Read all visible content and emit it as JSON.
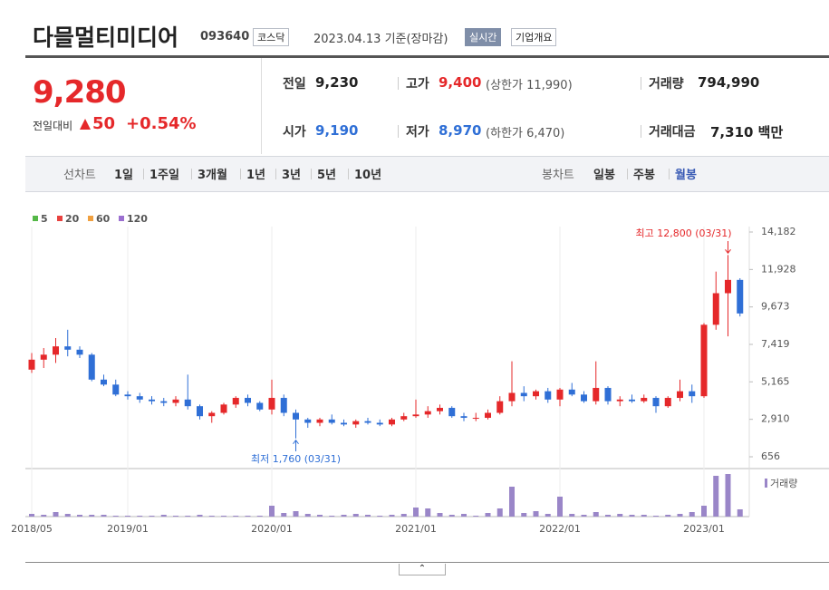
{
  "header": {
    "title": "다믈멀티미디어",
    "code": "093640",
    "market": "코스닥",
    "date": "2023.04.13 기준(장마감)",
    "realtime": "실시간",
    "company": "기업개요"
  },
  "quote": {
    "price": "9,280",
    "change_label": "전일대비",
    "change": "50",
    "percent": "+0.54%",
    "items": [
      {
        "label": "전일",
        "value": "9,230"
      },
      {
        "label": "고가",
        "value": "9,400",
        "sub": "(상한가 11,990)"
      },
      {
        "label": "거래량",
        "value": "794,990"
      },
      {
        "label": "시가",
        "value": "9,190"
      },
      {
        "label": "저가",
        "value": "8,970",
        "sub": "(하한가 6,470)"
      },
      {
        "label": "거래대금",
        "value": "7,310 백만"
      }
    ]
  },
  "periods": {
    "line_label": "선차트",
    "line": [
      "1일",
      "1주일",
      "3개월",
      "1년",
      "3년",
      "5년",
      "10년"
    ],
    "candle_label": "봉차트",
    "candle": [
      "일봉",
      "주봉",
      "월봉"
    ],
    "selected": 2
  },
  "chart_data": {
    "type": "candlestick",
    "ma_legend": [
      {
        "name": "5",
        "color": "#55b847"
      },
      {
        "name": "20",
        "color": "#e8423f"
      },
      {
        "name": "60",
        "color": "#f0a040"
      },
      {
        "name": "120",
        "color": "#9b6fd0"
      }
    ],
    "categories": [
      "2018/05",
      null,
      null,
      null,
      null,
      null,
      null,
      null,
      "2019/01",
      null,
      null,
      null,
      null,
      null,
      null,
      null,
      null,
      null,
      null,
      null,
      "2020/01",
      null,
      null,
      null,
      null,
      null,
      null,
      null,
      null,
      null,
      null,
      null,
      "2021/01",
      null,
      null,
      null,
      null,
      null,
      null,
      null,
      null,
      null,
      null,
      null,
      "2022/01",
      null,
      null,
      null,
      null,
      null,
      null,
      null,
      null,
      null,
      null,
      null,
      "2023/01",
      null,
      null,
      null
    ],
    "open": [
      5900,
      6500,
      6800,
      7300,
      7100,
      6800,
      5300,
      5000,
      4400,
      4300,
      4100,
      4000,
      3900,
      4100,
      3700,
      3100,
      3300,
      3800,
      4200,
      3900,
      3500,
      4200,
      3300,
      2900,
      2700,
      2900,
      2700,
      2600,
      2800,
      2700,
      2600,
      2900,
      3100,
      3200,
      3400,
      3600,
      3100,
      3000,
      3000,
      3300,
      4000,
      4500,
      4300,
      4600,
      4100,
      4700,
      4400,
      4000,
      4800,
      4000,
      4100,
      4000,
      4200,
      3700,
      4200,
      4600,
      4300,
      8600,
      10500,
      11300
    ],
    "high": [
      6900,
      7200,
      7800,
      8300,
      7300,
      6900,
      5600,
      5300,
      4600,
      4500,
      4300,
      4200,
      4300,
      5600,
      3800,
      3400,
      3900,
      4300,
      4400,
      4000,
      5300,
      4400,
      3500,
      3000,
      3000,
      3200,
      2900,
      2900,
      3000,
      2900,
      3000,
      3300,
      4100,
      3700,
      3800,
      3700,
      3300,
      3300,
      3500,
      4300,
      6400,
      4900,
      4700,
      4800,
      4800,
      5100,
      4600,
      6400,
      4900,
      4300,
      4400,
      4400,
      4300,
      4300,
      5300,
      5000,
      8700,
      11800,
      12800,
      11400
    ],
    "low": [
      5700,
      6000,
      6300,
      6700,
      6600,
      5200,
      4900,
      4300,
      4100,
      3900,
      3800,
      3700,
      3700,
      3500,
      2900,
      2700,
      3200,
      3600,
      3700,
      3400,
      3200,
      3100,
      1760,
      2400,
      2500,
      2600,
      2500,
      2400,
      2600,
      2500,
      2500,
      2800,
      3000,
      3000,
      3200,
      3000,
      2800,
      2800,
      2900,
      3200,
      3700,
      4000,
      4100,
      3900,
      3700,
      4300,
      3900,
      3800,
      3800,
      3700,
      3900,
      3900,
      3300,
      3600,
      4000,
      3900,
      4200,
      8300,
      7900,
      9100
    ],
    "close": [
      6500,
      6800,
      7300,
      7100,
      6800,
      5300,
      5000,
      4400,
      4300,
      4100,
      4000,
      3900,
      4100,
      3700,
      3100,
      3300,
      3800,
      4200,
      3900,
      3500,
      4200,
      3300,
      2900,
      2700,
      2900,
      2700,
      2600,
      2800,
      2700,
      2600,
      2900,
      3100,
      3200,
      3400,
      3600,
      3100,
      3000,
      3000,
      3300,
      4000,
      4500,
      4300,
      4600,
      4100,
      4700,
      4400,
      4000,
      4800,
      4000,
      4100,
      4000,
      4200,
      3700,
      4200,
      4600,
      4300,
      8600,
      10500,
      11300,
      9280
    ],
    "volume": [
      3,
      2,
      5,
      3,
      2,
      2,
      2,
      1,
      1,
      1,
      1,
      2,
      1,
      1,
      2,
      1,
      1,
      1,
      1,
      1,
      12,
      4,
      6,
      3,
      2,
      1,
      2,
      3,
      2,
      1,
      2,
      3,
      10,
      9,
      4,
      2,
      3,
      1,
      4,
      9,
      33,
      4,
      6,
      3,
      22,
      3,
      2,
      5,
      2,
      3,
      2,
      2,
      1,
      2,
      3,
      5,
      12,
      45,
      47,
      8
    ],
    "volume_label": "거래량",
    "volume_ylim": [
      0,
      50
    ],
    "ylim": [
      656,
      14182
    ],
    "yticks": [
      {
        "value": 14182,
        "label": "14,182"
      },
      {
        "value": 11928,
        "label": "11,928"
      },
      {
        "value": 9673,
        "label": "9,673"
      },
      {
        "value": 7419,
        "label": "7,419"
      },
      {
        "value": 5165,
        "label": "5,165"
      },
      {
        "value": 2910,
        "label": "2,910"
      },
      656
    ],
    "high_label": "최고 12,800 (03/31)",
    "low_label": "최저 1,760 (03/31)",
    "up_color": "#e5282a",
    "down_color": "#2f6fd6",
    "volume_color": "#9a86c8"
  }
}
